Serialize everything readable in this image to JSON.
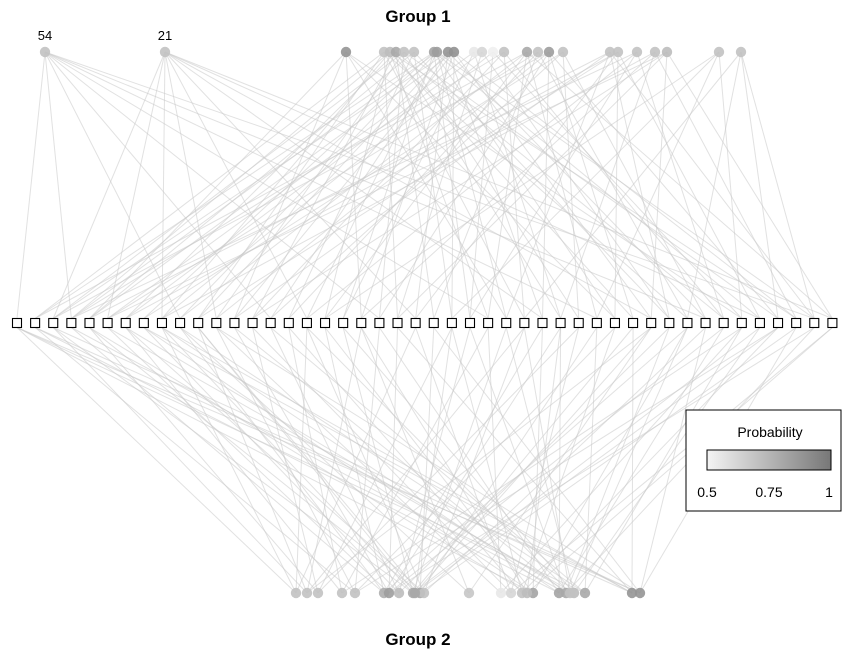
{
  "titles": {
    "top": "Group 1",
    "bottom": "Group 2"
  },
  "legend": {
    "title": "Probability",
    "ticks": [
      "0.5",
      "0.75",
      "1"
    ],
    "range": [
      0.5,
      1.0
    ],
    "color_low": "#f4f4f4",
    "color_high": "#777777"
  },
  "node_labels": {
    "g1_0": "54",
    "g1_1": "21"
  },
  "styles": {
    "edge_color": "#c8c8c8",
    "node_stroke": "#000000",
    "square_fill": "#ffffff"
  },
  "network": {
    "square_count": 46,
    "group1_nodes": [
      {
        "id": "g1_0",
        "p": 0.7
      },
      {
        "id": "g1_1",
        "p": 0.7
      },
      {
        "id": "g1_2",
        "p": 0.88
      },
      {
        "id": "g1_3",
        "p": 0.7
      },
      {
        "id": "g1_4",
        "p": 0.72
      },
      {
        "id": "g1_5",
        "p": 0.8
      },
      {
        "id": "g1_6",
        "p": 0.7
      },
      {
        "id": "g1_7",
        "p": 0.7
      },
      {
        "id": "g1_8",
        "p": 0.82
      },
      {
        "id": "g1_9",
        "p": 0.85
      },
      {
        "id": "g1_10",
        "p": 0.88
      },
      {
        "id": "g1_11",
        "p": 0.9
      },
      {
        "id": "g1_12",
        "p": 0.55
      },
      {
        "id": "g1_13",
        "p": 0.62
      },
      {
        "id": "g1_14",
        "p": 0.52
      },
      {
        "id": "g1_15",
        "p": 0.7
      },
      {
        "id": "g1_16",
        "p": 0.8
      },
      {
        "id": "g1_17",
        "p": 0.7
      },
      {
        "id": "g1_18",
        "p": 0.85
      },
      {
        "id": "g1_19",
        "p": 0.7
      },
      {
        "id": "g1_20",
        "p": 0.7
      },
      {
        "id": "g1_21",
        "p": 0.7
      },
      {
        "id": "g1_22",
        "p": 0.7
      },
      {
        "id": "g1_23",
        "p": 0.7
      },
      {
        "id": "g1_24",
        "p": 0.72
      },
      {
        "id": "g1_25",
        "p": 0.7
      },
      {
        "id": "g1_26",
        "p": 0.7
      }
    ],
    "group2_nodes": [
      {
        "id": "g2_0",
        "p": 0.7
      },
      {
        "id": "g2_1",
        "p": 0.7
      },
      {
        "id": "g2_2",
        "p": 0.7
      },
      {
        "id": "g2_3",
        "p": 0.7
      },
      {
        "id": "g2_4",
        "p": 0.7
      },
      {
        "id": "g2_5",
        "p": 0.78
      },
      {
        "id": "g2_6",
        "p": 0.85
      },
      {
        "id": "g2_7",
        "p": 0.72
      },
      {
        "id": "g2_8",
        "p": 0.8
      },
      {
        "id": "g2_9",
        "p": 0.8
      },
      {
        "id": "g2_10",
        "p": 0.7
      },
      {
        "id": "g2_11",
        "p": 0.68
      },
      {
        "id": "g2_12",
        "p": 0.55
      },
      {
        "id": "g2_13",
        "p": 0.62
      },
      {
        "id": "g2_14",
        "p": 0.7
      },
      {
        "id": "g2_15",
        "p": 0.82
      },
      {
        "id": "g2_16",
        "p": 0.82
      },
      {
        "id": "g2_17",
        "p": 0.8
      },
      {
        "id": "g2_18",
        "p": 0.72
      },
      {
        "id": "g2_19",
        "p": 0.8
      },
      {
        "id": "g2_20",
        "p": 0.88
      },
      {
        "id": "g2_21",
        "p": 0.88
      },
      {
        "id": "g2_22",
        "p": 0.72
      },
      {
        "id": "g2_23",
        "p": 0.7
      },
      {
        "id": "g2_24",
        "p": 0.8
      }
    ],
    "top_edges": [
      [
        0,
        0
      ],
      [
        0,
        3
      ],
      [
        0,
        9
      ],
      [
        0,
        14
      ],
      [
        0,
        20
      ],
      [
        0,
        26
      ],
      [
        0,
        32
      ],
      [
        0,
        38
      ],
      [
        0,
        44
      ],
      [
        1,
        2
      ],
      [
        1,
        5
      ],
      [
        1,
        8
      ],
      [
        1,
        11
      ],
      [
        1,
        16
      ],
      [
        1,
        22
      ],
      [
        1,
        29
      ],
      [
        1,
        35
      ],
      [
        1,
        41
      ],
      [
        1,
        45
      ],
      [
        2,
        4
      ],
      [
        2,
        12
      ],
      [
        2,
        19
      ],
      [
        2,
        27
      ],
      [
        2,
        33
      ],
      [
        2,
        40
      ],
      [
        3,
        1
      ],
      [
        3,
        10
      ],
      [
        3,
        21
      ],
      [
        3,
        28
      ],
      [
        3,
        37
      ],
      [
        4,
        3
      ],
      [
        4,
        8
      ],
      [
        4,
        17
      ],
      [
        4,
        26
      ],
      [
        4,
        34
      ],
      [
        4,
        43
      ],
      [
        5,
        6
      ],
      [
        5,
        13
      ],
      [
        5,
        23
      ],
      [
        5,
        30
      ],
      [
        5,
        39
      ],
      [
        6,
        2
      ],
      [
        6,
        11
      ],
      [
        6,
        20
      ],
      [
        6,
        31
      ],
      [
        6,
        42
      ],
      [
        7,
        4
      ],
      [
        7,
        15
      ],
      [
        7,
        24
      ],
      [
        7,
        36
      ],
      [
        8,
        1
      ],
      [
        8,
        7
      ],
      [
        8,
        18
      ],
      [
        8,
        25
      ],
      [
        8,
        33
      ],
      [
        8,
        41
      ],
      [
        9,
        3
      ],
      [
        9,
        9
      ],
      [
        9,
        16
      ],
      [
        9,
        27
      ],
      [
        9,
        44
      ],
      [
        10,
        2
      ],
      [
        10,
        10
      ],
      [
        10,
        14
      ],
      [
        10,
        22
      ],
      [
        10,
        29
      ],
      [
        10,
        38
      ],
      [
        11,
        4
      ],
      [
        11,
        12
      ],
      [
        11,
        19
      ],
      [
        11,
        24
      ],
      [
        11,
        35
      ],
      [
        11,
        43
      ],
      [
        12,
        5
      ],
      [
        12,
        18
      ],
      [
        12,
        30
      ],
      [
        13,
        6
      ],
      [
        13,
        21
      ],
      [
        13,
        36
      ],
      [
        14,
        8
      ],
      [
        14,
        25
      ],
      [
        14,
        40
      ],
      [
        15,
        3
      ],
      [
        15,
        13
      ],
      [
        15,
        28
      ],
      [
        15,
        39
      ],
      [
        16,
        1
      ],
      [
        16,
        9
      ],
      [
        16,
        17
      ],
      [
        16,
        26
      ],
      [
        16,
        32
      ],
      [
        16,
        45
      ],
      [
        17,
        5
      ],
      [
        17,
        15
      ],
      [
        17,
        23
      ],
      [
        17,
        37
      ],
      [
        18,
        2
      ],
      [
        18,
        11
      ],
      [
        18,
        20
      ],
      [
        18,
        29
      ],
      [
        18,
        34
      ],
      [
        18,
        42
      ],
      [
        19,
        7
      ],
      [
        19,
        14
      ],
      [
        19,
        31
      ],
      [
        19,
        38
      ],
      [
        20,
        4
      ],
      [
        20,
        12
      ],
      [
        20,
        27
      ],
      [
        20,
        36
      ],
      [
        20,
        44
      ],
      [
        21,
        6
      ],
      [
        21,
        10
      ],
      [
        21,
        22
      ],
      [
        21,
        33
      ],
      [
        21,
        41
      ],
      [
        22,
        3
      ],
      [
        22,
        16
      ],
      [
        22,
        25
      ],
      [
        22,
        39
      ],
      [
        23,
        8
      ],
      [
        23,
        19
      ],
      [
        23,
        30
      ],
      [
        23,
        43
      ],
      [
        24,
        5
      ],
      [
        24,
        13
      ],
      [
        24,
        21
      ],
      [
        24,
        35
      ],
      [
        24,
        45
      ],
      [
        25,
        40
      ],
      [
        25,
        32
      ],
      [
        25,
        17
      ],
      [
        25,
        24
      ],
      [
        26,
        42
      ],
      [
        26,
        28
      ],
      [
        26,
        44
      ],
      [
        26,
        37
      ]
    ],
    "bottom_edges": [
      [
        0,
        0
      ],
      [
        0,
        8
      ],
      [
        0,
        16
      ],
      [
        0,
        22
      ],
      [
        1,
        2
      ],
      [
        1,
        10
      ],
      [
        1,
        19
      ],
      [
        1,
        28
      ],
      [
        1,
        35
      ],
      [
        2,
        4
      ],
      [
        2,
        13
      ],
      [
        2,
        24
      ],
      [
        2,
        31
      ],
      [
        3,
        6
      ],
      [
        3,
        15
      ],
      [
        3,
        26
      ],
      [
        3,
        40
      ],
      [
        4,
        1
      ],
      [
        4,
        11
      ],
      [
        4,
        20
      ],
      [
        4,
        33
      ],
      [
        4,
        42
      ],
      [
        5,
        3
      ],
      [
        5,
        9
      ],
      [
        5,
        17
      ],
      [
        5,
        29
      ],
      [
        5,
        37
      ],
      [
        6,
        5
      ],
      [
        6,
        12
      ],
      [
        6,
        21
      ],
      [
        6,
        30
      ],
      [
        6,
        39
      ],
      [
        6,
        44
      ],
      [
        7,
        7
      ],
      [
        7,
        14
      ],
      [
        7,
        25
      ],
      [
        7,
        36
      ],
      [
        8,
        2
      ],
      [
        8,
        8
      ],
      [
        8,
        18
      ],
      [
        8,
        27
      ],
      [
        8,
        34
      ],
      [
        8,
        41
      ],
      [
        9,
        4
      ],
      [
        9,
        10
      ],
      [
        9,
        23
      ],
      [
        9,
        32
      ],
      [
        9,
        43
      ],
      [
        10,
        6
      ],
      [
        10,
        16
      ],
      [
        10,
        28
      ],
      [
        10,
        38
      ],
      [
        11,
        9
      ],
      [
        11,
        19
      ],
      [
        11,
        35
      ],
      [
        12,
        11
      ],
      [
        12,
        26
      ],
      [
        12,
        40
      ],
      [
        13,
        13
      ],
      [
        13,
        22
      ],
      [
        13,
        31
      ],
      [
        13,
        45
      ],
      [
        14,
        15
      ],
      [
        14,
        24
      ],
      [
        14,
        33
      ],
      [
        14,
        42
      ],
      [
        15,
        0
      ],
      [
        15,
        7
      ],
      [
        15,
        17
      ],
      [
        15,
        29
      ],
      [
        15,
        37
      ],
      [
        16,
        1
      ],
      [
        16,
        8
      ],
      [
        16,
        20
      ],
      [
        16,
        30
      ],
      [
        16,
        39
      ],
      [
        17,
        3
      ],
      [
        17,
        12
      ],
      [
        17,
        25
      ],
      [
        17,
        36
      ],
      [
        17,
        44
      ],
      [
        18,
        5
      ],
      [
        18,
        18
      ],
      [
        18,
        27
      ],
      [
        18,
        41
      ],
      [
        19,
        0
      ],
      [
        19,
        9
      ],
      [
        19,
        14
      ],
      [
        19,
        32
      ],
      [
        19,
        40
      ],
      [
        20,
        1
      ],
      [
        20,
        7
      ],
      [
        20,
        8
      ],
      [
        20,
        21
      ],
      [
        20,
        34
      ],
      [
        21,
        0
      ],
      [
        21,
        2
      ],
      [
        21,
        11
      ],
      [
        21,
        23
      ],
      [
        21,
        38
      ],
      [
        21,
        43
      ],
      [
        22,
        4
      ],
      [
        22,
        19
      ],
      [
        22,
        30
      ],
      [
        22,
        45
      ],
      [
        23,
        6
      ],
      [
        23,
        16
      ],
      [
        23,
        28
      ],
      [
        23,
        37
      ],
      [
        24,
        10
      ],
      [
        24,
        24
      ],
      [
        24,
        35
      ],
      [
        24,
        42
      ]
    ]
  }
}
